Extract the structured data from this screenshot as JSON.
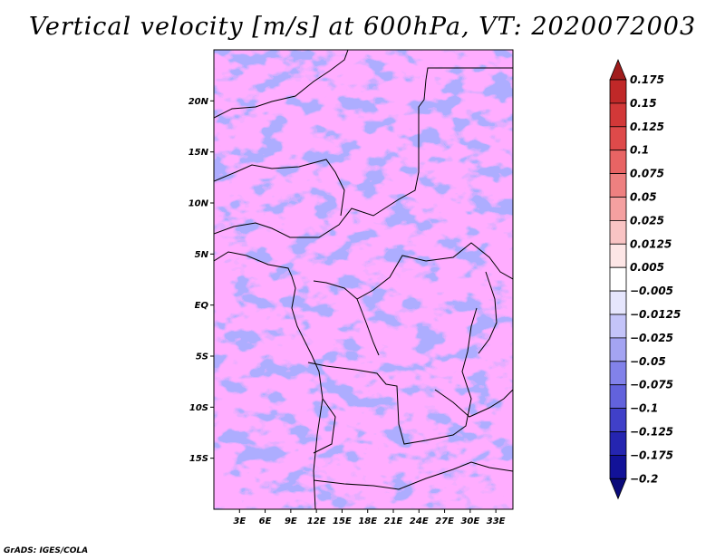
{
  "title": "Vertical velocity [m/s] at 600hPa, VT: 2020072003",
  "credit": "GrADS: IGES/COLA",
  "map": {
    "lat_ticks": [
      "20N",
      "15N",
      "10N",
      "5N",
      "EQ",
      "5S",
      "10S",
      "15S"
    ],
    "lon_ticks": [
      "3E",
      "6E",
      "9E",
      "12E",
      "15E",
      "18E",
      "21E",
      "24E",
      "27E",
      "30E",
      "33E"
    ],
    "lat_values": [
      20,
      15,
      10,
      5,
      0,
      -5,
      -10,
      -15
    ],
    "lon_values": [
      3,
      6,
      9,
      12,
      15,
      18,
      21,
      24,
      27,
      30,
      33
    ],
    "lat_range": [
      -20,
      25
    ],
    "lon_range": [
      0,
      35
    ]
  },
  "colorbar": {
    "labels": [
      "0.175",
      "0.15",
      "0.125",
      "0.1",
      "0.075",
      "0.05",
      "0.025",
      "0.0125",
      "0.005",
      "−0.005",
      "−0.0125",
      "−0.025",
      "−0.05",
      "−0.075",
      "−0.1",
      "−0.125",
      "−0.175",
      "−0.2"
    ],
    "colors": [
      "#a01c1c",
      "#c02828",
      "#d23838",
      "#de4a4a",
      "#e86464",
      "#ee8080",
      "#f4a0a0",
      "#f9c4c4",
      "#fde6e6",
      "#ffffff",
      "#e6e6fd",
      "#c4c4f9",
      "#a4a4f2",
      "#8282ea",
      "#6262dc",
      "#4040c8",
      "#2525b0",
      "#121298",
      "#0a0a7a"
    ]
  }
}
